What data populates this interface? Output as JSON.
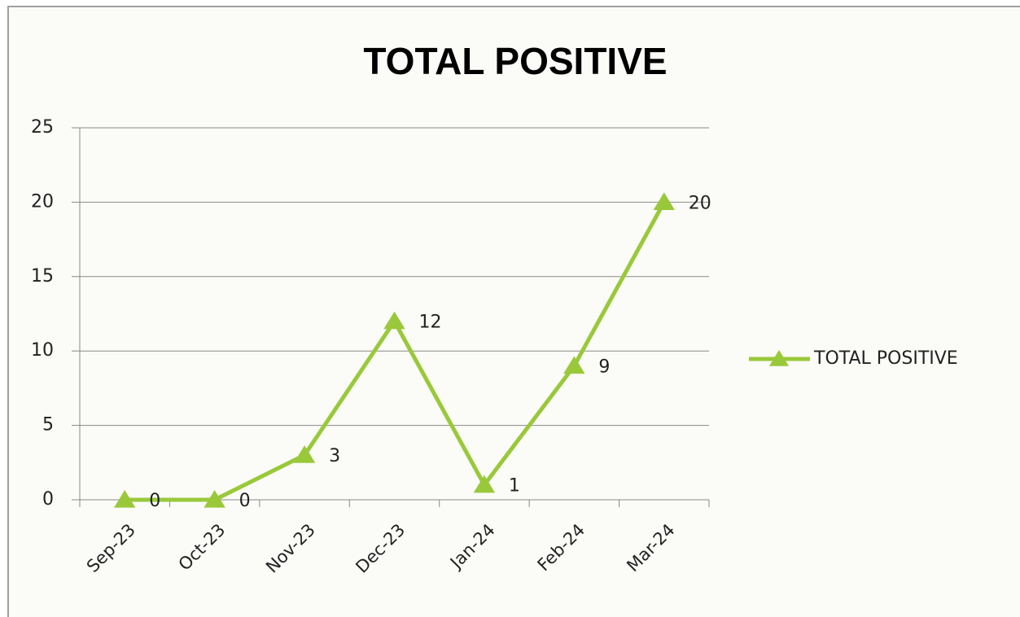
{
  "chart_data": {
    "type": "line",
    "title": "TOTAL POSITIVE",
    "categories": [
      "Sep-23",
      "Oct-23",
      "Nov-23",
      "Dec-23",
      "Jan-24",
      "Feb-24",
      "Mar-24"
    ],
    "series": [
      {
        "name": "TOTAL POSITIVE",
        "color": "#99c93a",
        "values": [
          0,
          0,
          3,
          12,
          1,
          9,
          20
        ]
      }
    ],
    "ylim": [
      0,
      25
    ],
    "yticks": [
      0,
      5,
      10,
      15,
      20,
      25
    ],
    "grid": true,
    "legend": "right"
  }
}
